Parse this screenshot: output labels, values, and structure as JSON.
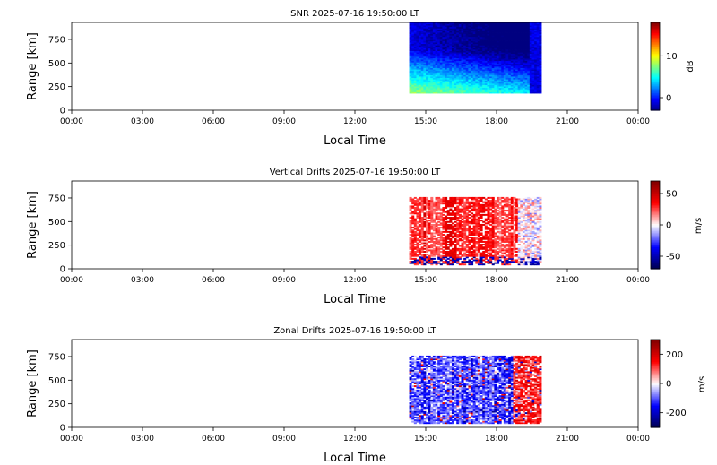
{
  "chart_data": [
    {
      "type": "heatmap",
      "title": "SNR 2025-07-16 19:50:00 LT",
      "xlabel": "Local Time",
      "ylabel": "Range [km]",
      "x_ticks": [
        "00:00",
        "03:00",
        "06:00",
        "09:00",
        "12:00",
        "15:00",
        "18:00",
        "21:00",
        "00:00"
      ],
      "xlim_hours": [
        0,
        24
      ],
      "y_ticks": [
        0,
        250,
        500,
        750
      ],
      "ylim": [
        0,
        930
      ],
      "data_window_hours": [
        14.3,
        19.9
      ],
      "data_range_km": [
        180,
        930
      ],
      "colorbar": {
        "label": "dB",
        "ticks": [
          0,
          10
        ],
        "range": [
          -3,
          18
        ],
        "colormap": "jet"
      },
      "description_values": {
        "near_range_snr_db": 8,
        "upper_range_snr_db": -1
      }
    },
    {
      "type": "heatmap",
      "title": "Vertical Drifts 2025-07-16 19:50:00 LT",
      "xlabel": "Local Time",
      "ylabel": "Range [km]",
      "x_ticks": [
        "00:00",
        "03:00",
        "06:00",
        "09:00",
        "12:00",
        "15:00",
        "18:00",
        "21:00",
        "00:00"
      ],
      "xlim_hours": [
        0,
        24
      ],
      "y_ticks": [
        0,
        250,
        500,
        750
      ],
      "ylim": [
        0,
        930
      ],
      "data_window_hours": [
        14.3,
        19.9
      ],
      "data_range_km": [
        40,
        760
      ],
      "colorbar": {
        "label": "m/s",
        "ticks": [
          -50,
          0,
          50
        ],
        "range": [
          -70,
          70
        ],
        "colormap": "seismic"
      },
      "description_values": {
        "typical_drift_ms": 30
      }
    },
    {
      "type": "heatmap",
      "title": "Zonal Drifts 2025-07-16 19:50:00 LT",
      "xlabel": "Local Time",
      "ylabel": "Range [km]",
      "x_ticks": [
        "00:00",
        "03:00",
        "06:00",
        "09:00",
        "12:00",
        "15:00",
        "18:00",
        "21:00",
        "00:00"
      ],
      "xlim_hours": [
        0,
        24
      ],
      "y_ticks": [
        0,
        250,
        500,
        750
      ],
      "ylim": [
        0,
        930
      ],
      "data_window_hours": [
        14.3,
        19.9
      ],
      "data_range_km": [
        40,
        760
      ],
      "colorbar": {
        "label": "m/s",
        "ticks": [
          -200,
          0,
          200
        ],
        "range": [
          -300,
          300
        ],
        "colormap": "seismic"
      },
      "description_values": {
        "early_drift_ms": -100,
        "late_drift_ms": 120
      }
    }
  ]
}
